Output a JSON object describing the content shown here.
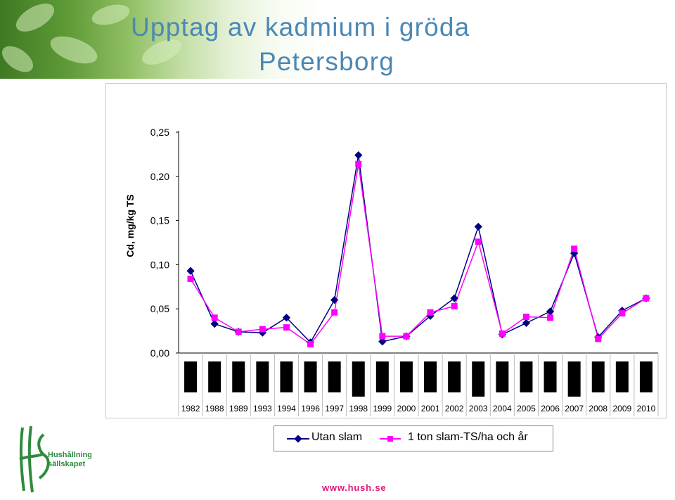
{
  "header": {
    "title_line1": "Upptag av kadmium i gröda",
    "title_line2": "Petersborg"
  },
  "colors": {
    "series_1": "#000080",
    "series_2": "#ff00ff",
    "title": "#4a88b5",
    "footer": "#e0177b",
    "logo": "#2f8a3e"
  },
  "logo": {
    "line1": "Hushållnings",
    "line2": "sällskapet",
    "monogram": "HS"
  },
  "footer": {
    "url": "www.hush.se"
  },
  "chart_data": {
    "type": "line",
    "title": "",
    "xlabel": "",
    "ylabel": "Cd, mg/kg TS",
    "x": [
      "1982",
      "1988",
      "1989",
      "1993",
      "1994",
      "1996",
      "1997",
      "1998",
      "1999",
      "2000",
      "2001",
      "2002",
      "2003",
      "2004",
      "2005",
      "2006",
      "2007",
      "2008",
      "2009",
      "2010"
    ],
    "ylim": [
      0,
      0.25
    ],
    "yticks": [
      "0,00",
      "0,05",
      "0,10",
      "0,15",
      "0,20",
      "0,25"
    ],
    "series": [
      {
        "name": "Utan slam",
        "marker": "diamond",
        "values": [
          0.093,
          0.033,
          0.024,
          0.023,
          0.04,
          0.012,
          0.06,
          0.224,
          0.013,
          0.019,
          0.042,
          0.062,
          0.143,
          0.021,
          0.034,
          0.047,
          0.113,
          0.018,
          0.048,
          0.062
        ]
      },
      {
        "name": "1 ton slam-TS/ha och år",
        "marker": "square",
        "values": [
          0.084,
          0.04,
          0.024,
          0.027,
          0.029,
          0.01,
          0.046,
          0.214,
          0.019,
          0.019,
          0.046,
          0.053,
          0.126,
          0.022,
          0.041,
          0.04,
          0.118,
          0.016,
          0.045,
          0.062
        ]
      }
    ],
    "grid": false,
    "legend": "bottom",
    "bars_below_axis": true
  }
}
